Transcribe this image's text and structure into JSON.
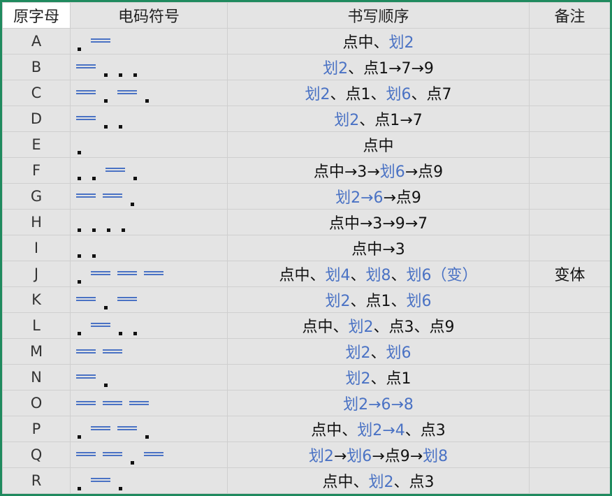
{
  "headers": [
    "原字母",
    "电码符号",
    "书写顺序",
    "备注"
  ],
  "colors": {
    "accent_blue": "#4a72c4",
    "border_green": "#1f8a5e"
  },
  "rows": [
    {
      "letter": "A",
      "morse": ".-",
      "order": [
        [
          "点中、",
          "k"
        ],
        [
          "划2",
          "b"
        ]
      ],
      "note": ""
    },
    {
      "letter": "B",
      "morse": "-...",
      "order": [
        [
          "划2",
          "b"
        ],
        [
          "、点1→7→9",
          "k"
        ]
      ],
      "note": ""
    },
    {
      "letter": "C",
      "morse": "-.-.",
      "order": [
        [
          "划2",
          "b"
        ],
        [
          "、点1、",
          "k"
        ],
        [
          "划6",
          "b"
        ],
        [
          "、点7",
          "k"
        ]
      ],
      "note": ""
    },
    {
      "letter": "D",
      "morse": "-..",
      "order": [
        [
          "划2",
          "b"
        ],
        [
          "、点1→7",
          "k"
        ]
      ],
      "note": ""
    },
    {
      "letter": "E",
      "morse": ".",
      "order": [
        [
          "点中",
          "k"
        ]
      ],
      "note": ""
    },
    {
      "letter": "F",
      "morse": "..-.",
      "order": [
        [
          "点中→3→",
          "k"
        ],
        [
          "划6",
          "b"
        ],
        [
          "→点9",
          "k"
        ]
      ],
      "note": ""
    },
    {
      "letter": "G",
      "morse": "--.",
      "order": [
        [
          "划2→6",
          "b"
        ],
        [
          "→点9",
          "k"
        ]
      ],
      "note": ""
    },
    {
      "letter": "H",
      "morse": "....",
      "order": [
        [
          "点中→3→9→7",
          "k"
        ]
      ],
      "note": ""
    },
    {
      "letter": "I",
      "morse": "..",
      "order": [
        [
          "点中→3",
          "k"
        ]
      ],
      "note": ""
    },
    {
      "letter": "J",
      "morse": ".---",
      "order": [
        [
          "点中、",
          "k"
        ],
        [
          "划4",
          "b"
        ],
        [
          "、",
          "k"
        ],
        [
          "划8",
          "b"
        ],
        [
          "、",
          "k"
        ],
        [
          "划6（变）",
          "b"
        ]
      ],
      "note": "变体"
    },
    {
      "letter": "K",
      "morse": "-.-",
      "order": [
        [
          "划2",
          "b"
        ],
        [
          "、点1、",
          "k"
        ],
        [
          "划6",
          "b"
        ]
      ],
      "note": ""
    },
    {
      "letter": "L",
      "morse": ".-..",
      "order": [
        [
          "点中、",
          "k"
        ],
        [
          "划2",
          "b"
        ],
        [
          "、点3、点9",
          "k"
        ]
      ],
      "note": ""
    },
    {
      "letter": "M",
      "morse": "--",
      "order": [
        [
          "划2",
          "b"
        ],
        [
          "、",
          "k"
        ],
        [
          "划6",
          "b"
        ]
      ],
      "note": ""
    },
    {
      "letter": "N",
      "morse": "-.",
      "order": [
        [
          "划2",
          "b"
        ],
        [
          "、点1",
          "k"
        ]
      ],
      "note": ""
    },
    {
      "letter": "O",
      "morse": "---",
      "order": [
        [
          "划2→6→8",
          "b"
        ]
      ],
      "note": ""
    },
    {
      "letter": "P",
      "morse": ".--.",
      "order": [
        [
          "点中、",
          "k"
        ],
        [
          "划2→4",
          "b"
        ],
        [
          "、点3",
          "k"
        ]
      ],
      "note": ""
    },
    {
      "letter": "Q",
      "morse": "--.-",
      "order": [
        [
          "划2",
          "b"
        ],
        [
          "→",
          "k"
        ],
        [
          "划6",
          "b"
        ],
        [
          "→点9→",
          "k"
        ],
        [
          "划8",
          "b"
        ]
      ],
      "note": ""
    },
    {
      "letter": "R",
      "morse": ".-.",
      "order": [
        [
          "点中、",
          "k"
        ],
        [
          "划2",
          "b"
        ],
        [
          "、点3",
          "k"
        ]
      ],
      "note": ""
    }
  ]
}
